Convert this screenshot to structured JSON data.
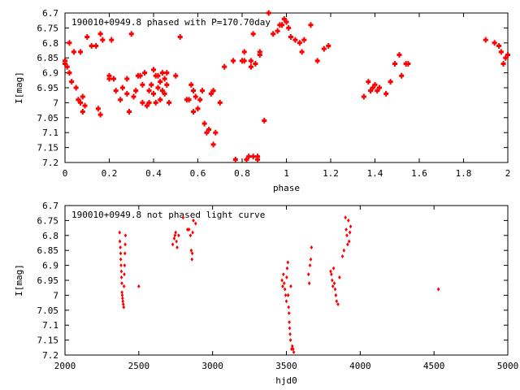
{
  "chart_data": [
    {
      "type": "scatter",
      "title": "190010+0949.8 phased with P=170.70day",
      "xlabel": "phase",
      "ylabel": "I[mag]",
      "xlim": [
        0,
        2
      ],
      "ylim": [
        7.2,
        6.7
      ],
      "y_inverted": true,
      "xticks": [
        "0",
        "0.2",
        "0.4",
        "0.6",
        "0.8",
        "1",
        "1.2",
        "1.4",
        "1.6",
        "1.8",
        "2"
      ],
      "yticks": [
        "6.7",
        "6.75",
        "6.8",
        "6.85",
        "6.9",
        "6.95",
        "7",
        "7.05",
        "7.1",
        "7.15",
        "7.2"
      ],
      "marker_color": "#ff0000",
      "x": [
        0.0,
        0.0,
        0.01,
        0.02,
        0.02,
        0.03,
        0.04,
        0.05,
        0.06,
        0.07,
        0.07,
        0.08,
        0.08,
        0.09,
        0.1,
        0.12,
        0.14,
        0.15,
        0.16,
        0.16,
        0.17,
        0.2,
        0.2,
        0.21,
        0.22,
        0.23,
        0.25,
        0.26,
        0.28,
        0.28,
        0.29,
        0.3,
        0.31,
        0.32,
        0.33,
        0.34,
        0.35,
        0.35,
        0.36,
        0.37,
        0.38,
        0.38,
        0.39,
        0.4,
        0.4,
        0.41,
        0.41,
        0.42,
        0.42,
        0.43,
        0.43,
        0.44,
        0.44,
        0.45,
        0.45,
        0.46,
        0.46,
        0.47,
        0.5,
        0.52,
        0.55,
        0.56,
        0.57,
        0.58,
        0.58,
        0.59,
        0.6,
        0.61,
        0.62,
        0.63,
        0.64,
        0.65,
        0.66,
        0.67,
        0.67,
        0.68,
        0.7,
        0.72,
        0.76,
        0.77,
        0.8,
        0.81,
        0.81,
        0.82,
        0.83,
        0.84,
        0.84,
        0.85,
        0.85,
        0.86,
        0.87,
        0.87,
        0.88,
        0.88,
        0.9,
        0.92,
        0.94,
        0.96,
        0.97,
        0.98,
        0.99,
        1.0,
        1.01,
        1.02,
        1.04,
        1.06,
        1.07,
        1.08,
        1.11,
        1.14,
        1.17,
        1.19,
        1.35,
        1.37,
        1.38,
        1.39,
        1.4,
        1.41,
        1.42,
        1.45,
        1.47,
        1.49,
        1.51,
        1.52,
        1.54,
        1.55,
        1.9,
        1.94,
        1.96,
        1.97,
        1.98,
        1.99,
        2.0
      ],
      "y": [
        6.86,
        6.87,
        6.88,
        6.8,
        6.9,
        6.93,
        6.83,
        6.95,
        6.99,
        7.0,
        6.83,
        7.03,
        6.98,
        7.01,
        6.78,
        6.81,
        6.81,
        7.02,
        7.04,
        6.77,
        6.79,
        6.91,
        6.92,
        6.79,
        6.92,
        6.96,
        6.99,
        6.95,
        6.92,
        6.97,
        7.03,
        6.77,
        6.98,
        6.96,
        6.91,
        6.91,
        6.94,
        7.0,
        6.9,
        7.01,
        7.0,
        6.96,
        6.94,
        6.89,
        6.97,
        6.91,
        7.0,
        6.95,
        6.91,
        6.93,
        6.99,
        6.9,
        6.96,
        6.92,
        6.97,
        6.94,
        6.9,
        7.0,
        6.91,
        6.78,
        6.99,
        6.99,
        6.94,
        7.03,
        6.96,
        6.98,
        7.02,
        6.99,
        6.96,
        7.07,
        7.1,
        7.09,
        6.97,
        6.96,
        7.14,
        7.1,
        7.0,
        6.88,
        6.86,
        7.19,
        6.86,
        6.86,
        6.83,
        7.19,
        7.18,
        6.88,
        6.86,
        7.18,
        6.77,
        6.87,
        7.19,
        7.18,
        6.84,
        6.83,
        7.06,
        6.7,
        6.77,
        6.76,
        6.74,
        6.74,
        6.72,
        6.73,
        6.75,
        6.78,
        6.79,
        6.8,
        6.83,
        6.79,
        6.74,
        6.86,
        6.82,
        6.81,
        6.98,
        6.93,
        6.96,
        6.95,
        6.94,
        6.96,
        6.95,
        6.97,
        6.93,
        6.87,
        6.84,
        6.91,
        6.87,
        6.87,
        6.79,
        6.8,
        6.81,
        6.83,
        6.87,
        6.85,
        6.84
      ]
    },
    {
      "type": "scatter",
      "title": "190010+0949.8 not phased light curve",
      "xlabel": "hjd0",
      "ylabel": "I[mag]",
      "xlim": [
        2000,
        5000
      ],
      "ylim": [
        7.2,
        6.7
      ],
      "y_inverted": true,
      "xticks": [
        "2000",
        "2500",
        "3000",
        "3500",
        "4000",
        "4500",
        "5000"
      ],
      "yticks": [
        "6.7",
        "6.75",
        "6.8",
        "6.85",
        "6.9",
        "6.95",
        "7",
        "7.05",
        "7.1",
        "7.15",
        "7.2"
      ],
      "marker_color": "#ff0000",
      "x": [
        2370,
        2372,
        2375,
        2377,
        2378,
        2380,
        2382,
        2383,
        2385,
        2386,
        2388,
        2390,
        2392,
        2395,
        2398,
        2400,
        2402,
        2404,
        2406,
        2408,
        2410,
        2500,
        2730,
        2740,
        2745,
        2750,
        2755,
        2760,
        2770,
        2800,
        2830,
        2840,
        2850,
        2855,
        2860,
        2862,
        2865,
        2870,
        2885,
        3470,
        3475,
        3480,
        3485,
        3490,
        3495,
        3500,
        3502,
        3505,
        3510,
        3512,
        3515,
        3518,
        3520,
        3522,
        3525,
        3528,
        3530,
        3535,
        3540,
        3545,
        3550,
        3650,
        3655,
        3660,
        3665,
        3670,
        3800,
        3805,
        3810,
        3815,
        3820,
        3825,
        3830,
        3835,
        3840,
        3850,
        3860,
        3880,
        3890,
        3900,
        3905,
        3910,
        3915,
        3920,
        3925,
        3930,
        3935,
        4530
      ],
      "y": [
        6.79,
        6.82,
        6.84,
        6.86,
        6.88,
        6.9,
        6.92,
        6.94,
        6.96,
        6.99,
        7.0,
        7.01,
        7.02,
        7.03,
        7.04,
        6.97,
        6.93,
        6.9,
        6.86,
        6.83,
        6.8,
        6.97,
        6.83,
        6.81,
        6.8,
        6.79,
        6.82,
        6.84,
        6.8,
        6.74,
        6.78,
        6.78,
        6.8,
        6.85,
        6.88,
        6.86,
        6.79,
        6.75,
        6.76,
        6.95,
        6.97,
        6.93,
        6.96,
        6.98,
        7.0,
        7.02,
        6.94,
        6.91,
        6.89,
        7.0,
        7.04,
        7.06,
        7.09,
        7.11,
        7.13,
        7.15,
        6.97,
        7.18,
        7.17,
        7.18,
        7.19,
        6.93,
        6.96,
        6.9,
        6.88,
        6.84,
        6.92,
        6.93,
        6.95,
        6.97,
        6.91,
        6.96,
        6.98,
        7.0,
        7.02,
        7.03,
        6.94,
        6.87,
        6.85,
        6.74,
        6.78,
        6.8,
        6.83,
        6.75,
        6.82,
        6.79,
        6.77,
        6.98
      ]
    }
  ]
}
